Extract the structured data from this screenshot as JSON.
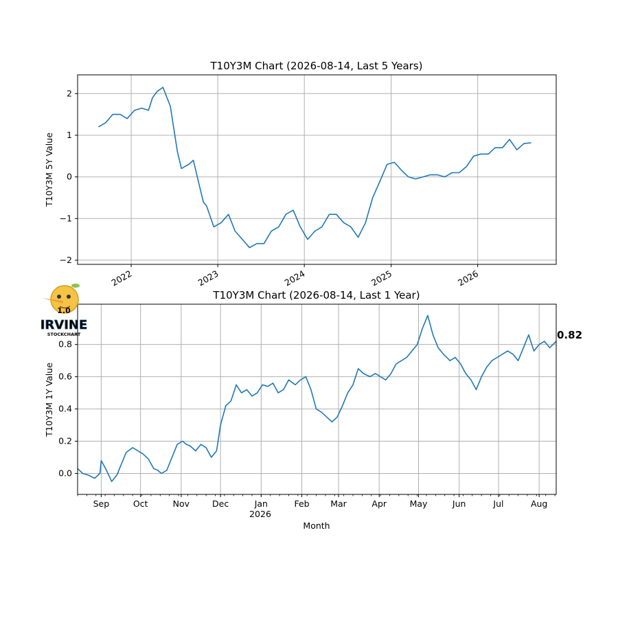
{
  "colors": {
    "series": "#1f77b4",
    "grid": "#b0b0b0",
    "logo_text": "#7ec8e3",
    "logo_fruit": "#f6c445"
  },
  "logo": {
    "name": "irvine-stockchart-logo",
    "version": "1.0",
    "brand": "IRVINE",
    "tagline": "STOCKCHART"
  },
  "chart_data": [
    {
      "type": "line",
      "title": "T10Y3M Chart (2026-08-14, Last 5 Years)",
      "xlabel": "",
      "ylabel": "T10Y3M 5Y Value",
      "x_ticks": [
        "2022",
        "2023",
        "2024",
        "2025",
        "2026"
      ],
      "y_ticks": [
        2,
        1,
        0,
        -1,
        -2
      ],
      "xlim": [
        "2021-05-20",
        "2026-11-28"
      ],
      "ylim": [
        -2.1,
        2.45
      ],
      "grid": true,
      "series": [
        {
          "x": [
            "2021-08-16",
            "2021-09-15",
            "2021-10-15",
            "2021-11-15",
            "2021-12-15",
            "2022-01-15",
            "2022-02-15",
            "2022-03-15",
            "2022-04-01",
            "2022-04-20",
            "2022-05-15",
            "2022-06-15",
            "2022-07-15",
            "2022-08-01",
            "2022-08-15",
            "2022-09-01",
            "2022-09-20",
            "2022-10-15",
            "2022-11-01",
            "2022-11-15",
            "2022-12-15",
            "2023-01-15",
            "2023-02-15",
            "2023-03-15",
            "2023-04-15",
            "2023-05-15",
            "2023-06-15",
            "2023-07-15",
            "2023-08-15",
            "2023-09-15",
            "2023-10-15",
            "2023-11-15",
            "2023-12-15",
            "2024-01-15",
            "2024-02-15",
            "2024-03-15",
            "2024-04-15",
            "2024-05-15",
            "2024-06-15",
            "2024-07-15",
            "2024-08-15",
            "2024-09-15",
            "2024-10-15",
            "2024-11-15",
            "2024-12-15",
            "2025-01-15",
            "2025-02-15",
            "2025-03-15",
            "2025-04-15",
            "2025-05-15",
            "2025-06-15",
            "2025-07-15",
            "2025-08-15",
            "2025-09-15",
            "2025-10-15",
            "2025-11-15",
            "2025-12-15",
            "2026-01-15",
            "2026-02-15",
            "2026-03-15",
            "2026-04-15",
            "2026-05-15",
            "2026-06-15",
            "2026-07-15",
            "2026-08-14"
          ],
          "y": [
            1.2,
            1.3,
            1.5,
            1.5,
            1.4,
            1.6,
            1.65,
            1.6,
            1.9,
            2.05,
            2.15,
            1.7,
            0.6,
            0.2,
            0.25,
            0.3,
            0.4,
            -0.2,
            -0.6,
            -0.7,
            -1.2,
            -1.1,
            -0.9,
            -1.3,
            -1.5,
            -1.7,
            -1.6,
            -1.6,
            -1.3,
            -1.2,
            -0.9,
            -0.8,
            -1.2,
            -1.5,
            -1.3,
            -1.2,
            -0.9,
            -0.9,
            -1.1,
            -1.2,
            -1.45,
            -1.1,
            -0.5,
            -0.1,
            0.3,
            0.35,
            0.15,
            0.0,
            -0.05,
            0.0,
            0.05,
            0.05,
            0.0,
            0.1,
            0.1,
            0.25,
            0.5,
            0.55,
            0.55,
            0.7,
            0.7,
            0.9,
            0.65,
            0.8,
            0.82
          ]
        }
      ]
    },
    {
      "type": "line",
      "title": "T10Y3M Chart (2026-08-14, Last 1 Year)",
      "xlabel": "Month",
      "ylabel": "T10Y3M 1Y Value",
      "x_ticks": [
        "Sep",
        "Oct",
        "Nov",
        "Dec",
        "Jan",
        "Feb",
        "Mar",
        "Apr",
        "May",
        "Jun",
        "Jul",
        "Aug"
      ],
      "x_tick_year": "2026",
      "y_ticks": [
        "0.8",
        "0.6",
        "0.4",
        "0.2",
        "0.0"
      ],
      "xlim": [
        "2025-08-14",
        "2026-08-14"
      ],
      "ylim": [
        -0.13,
        1.05
      ],
      "grid": true,
      "last_value_label": "0.82",
      "series": [
        {
          "x": [
            "2025-08-14",
            "2025-08-18",
            "2025-08-22",
            "2025-08-27",
            "2025-08-31",
            "2025-09-01",
            "2025-09-05",
            "2025-09-09",
            "2025-09-13",
            "2025-09-16",
            "2025-09-20",
            "2025-09-25",
            "2025-09-29",
            "2025-10-03",
            "2025-10-07",
            "2025-10-11",
            "2025-10-14",
            "2025-10-17",
            "2025-10-21",
            "2025-10-25",
            "2025-10-29",
            "2025-11-02",
            "2025-11-05",
            "2025-11-08",
            "2025-11-12",
            "2025-11-16",
            "2025-11-20",
            "2025-11-24",
            "2025-11-28",
            "2025-12-01",
            "2025-12-05",
            "2025-12-09",
            "2025-12-13",
            "2025-12-17",
            "2025-12-21",
            "2025-12-25",
            "2025-12-29",
            "2026-01-02",
            "2026-01-06",
            "2026-01-10",
            "2026-01-14",
            "2026-01-18",
            "2026-01-22",
            "2026-01-27",
            "2026-01-31",
            "2026-02-04",
            "2026-02-08",
            "2026-02-12",
            "2026-02-16",
            "2026-02-20",
            "2026-02-24",
            "2026-02-28",
            "2026-03-04",
            "2026-03-08",
            "2026-03-12",
            "2026-03-16",
            "2026-03-20",
            "2026-03-25",
            "2026-03-29",
            "2026-04-02",
            "2026-04-06",
            "2026-04-10",
            "2026-04-14",
            "2026-04-18",
            "2026-04-22",
            "2026-04-26",
            "2026-04-30",
            "2026-05-04",
            "2026-05-08",
            "2026-05-12",
            "2026-05-16",
            "2026-05-20",
            "2026-05-25",
            "2026-05-29",
            "2026-06-02",
            "2026-06-06",
            "2026-06-10",
            "2026-06-14",
            "2026-06-18",
            "2026-06-22",
            "2026-06-26",
            "2026-06-30",
            "2026-07-04",
            "2026-07-08",
            "2026-07-12",
            "2026-07-16",
            "2026-07-20",
            "2026-07-24",
            "2026-07-28",
            "2026-08-01",
            "2026-08-05",
            "2026-08-09",
            "2026-08-14"
          ],
          "y": [
            0.03,
            0.0,
            -0.01,
            -0.03,
            0.0,
            0.08,
            0.02,
            -0.05,
            -0.01,
            0.05,
            0.13,
            0.16,
            0.14,
            0.12,
            0.09,
            0.03,
            0.02,
            0.0,
            0.02,
            0.1,
            0.18,
            0.2,
            0.18,
            0.17,
            0.14,
            0.18,
            0.16,
            0.1,
            0.14,
            0.3,
            0.42,
            0.45,
            0.55,
            0.5,
            0.52,
            0.48,
            0.5,
            0.55,
            0.54,
            0.56,
            0.5,
            0.52,
            0.58,
            0.55,
            0.58,
            0.6,
            0.52,
            0.4,
            0.38,
            0.35,
            0.32,
            0.35,
            0.42,
            0.5,
            0.55,
            0.65,
            0.62,
            0.6,
            0.62,
            0.6,
            0.58,
            0.62,
            0.68,
            0.7,
            0.72,
            0.76,
            0.8,
            0.9,
            0.98,
            0.86,
            0.78,
            0.74,
            0.7,
            0.72,
            0.68,
            0.62,
            0.58,
            0.52,
            0.6,
            0.66,
            0.7,
            0.72,
            0.74,
            0.76,
            0.74,
            0.7,
            0.78,
            0.86,
            0.76,
            0.8,
            0.82,
            0.78,
            0.82
          ]
        }
      ]
    }
  ]
}
